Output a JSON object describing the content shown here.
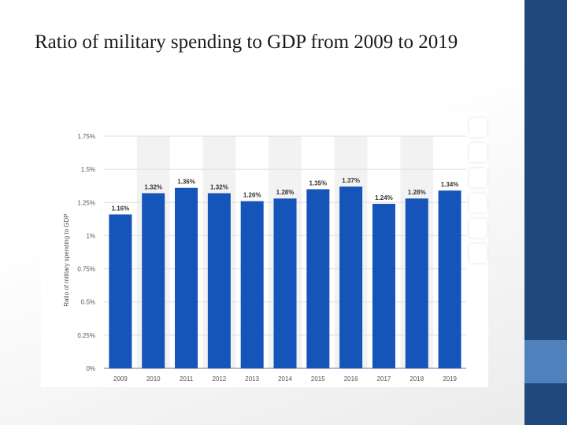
{
  "slide": {
    "title": "Ratio of military spending to GDP from 2009 to 2019"
  },
  "colors": {
    "bar": "#1554b8",
    "sidebar": "#1f497d",
    "sidebar_accent": "#4f81bd"
  },
  "toolbar_icons": [
    "toolbar-button-1",
    "toolbar-button-2",
    "toolbar-button-3",
    "toolbar-button-4",
    "toolbar-button-5",
    "toolbar-button-6"
  ],
  "chart_data": {
    "type": "bar",
    "title": "",
    "xlabel": "",
    "ylabel": "Ratio of military spending to GDP",
    "categories": [
      "2009",
      "2010",
      "2011",
      "2012",
      "2013",
      "2014",
      "2015",
      "2016",
      "2017",
      "2018",
      "2019"
    ],
    "values": [
      1.16,
      1.32,
      1.36,
      1.32,
      1.26,
      1.28,
      1.35,
      1.37,
      1.24,
      1.28,
      1.34
    ],
    "data_labels": [
      "1.16%",
      "1.32%",
      "1.36%",
      "1.32%",
      "1.26%",
      "1.28%",
      "1.35%",
      "1.37%",
      "1.24%",
      "1.28%",
      "1.34%"
    ],
    "ylim": [
      0,
      1.75
    ],
    "yticks": [
      0,
      0.25,
      0.5,
      0.75,
      1,
      1.25,
      1.5,
      1.75
    ],
    "ytick_labels": [
      "0%",
      "0.25%",
      "0.5%",
      "0.75%",
      "1%",
      "1.25%",
      "1.5%",
      "1.75%"
    ],
    "grid": true,
    "legend": "none"
  }
}
